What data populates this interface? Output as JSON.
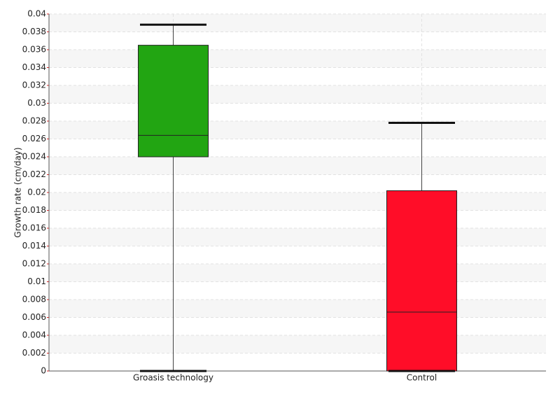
{
  "chart_data": {
    "type": "box",
    "y_label": "Growth rate (cm/day)",
    "categories": [
      "Groasis technology",
      "Control"
    ],
    "boxes": [
      {
        "color": "#22a512",
        "min": 0,
        "q1": 0.024,
        "median": 0.0264,
        "q3": 0.0365,
        "max": 0.0388
      },
      {
        "color": "#ff0d28",
        "min": 0,
        "q1": 0,
        "median": 0.0066,
        "q3": 0.0202,
        "max": 0.0278
      }
    ],
    "ylim": [
      0,
      0.04
    ],
    "yticks": [
      0,
      0.002,
      0.004,
      0.006,
      0.008,
      0.01,
      0.012,
      0.014,
      0.016,
      0.018,
      0.02,
      0.022,
      0.024,
      0.026,
      0.028,
      0.03,
      0.032,
      0.034,
      0.036,
      0.038,
      0.04
    ],
    "grid": true
  }
}
